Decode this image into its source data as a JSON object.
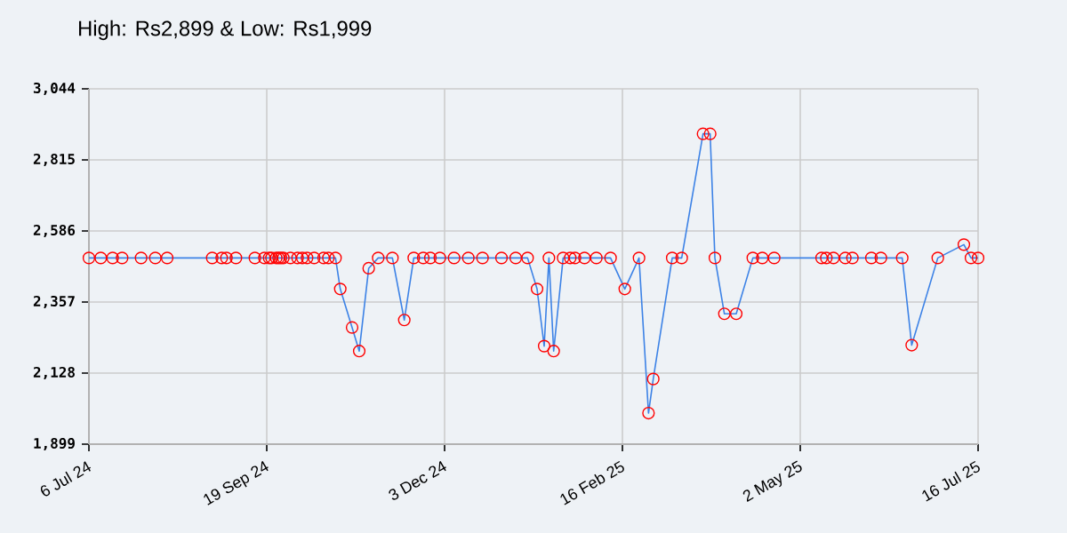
{
  "chart_data": {
    "type": "line",
    "title": "High: Rs2,899 & Low: Rs1,999",
    "x": [
      "2024-07-06",
      "2024-07-11",
      "2024-07-16",
      "2024-07-20",
      "2024-07-28",
      "2024-08-03",
      "2024-08-08",
      "2024-08-27",
      "2024-08-31",
      "2024-09-02",
      "2024-09-06",
      "2024-09-14",
      "2024-09-18",
      "2024-09-20",
      "2024-09-21",
      "2024-09-23",
      "2024-09-24",
      "2024-09-25",
      "2024-09-26",
      "2024-09-29",
      "2024-10-02",
      "2024-10-04",
      "2024-10-06",
      "2024-10-09",
      "2024-10-13",
      "2024-10-15",
      "2024-10-18",
      "2024-10-20",
      "2024-10-25",
      "2024-10-28",
      "2024-11-01",
      "2024-11-05",
      "2024-11-11",
      "2024-11-16",
      "2024-11-20",
      "2024-11-24",
      "2024-11-27",
      "2024-12-01",
      "2024-12-07",
      "2024-12-13",
      "2024-12-19",
      "2024-12-27",
      "2025-01-02",
      "2025-01-07",
      "2025-01-11",
      "2025-01-14",
      "2025-01-16",
      "2025-01-18",
      "2025-01-22",
      "2025-01-25",
      "2025-01-27",
      "2025-01-31",
      "2025-02-05",
      "2025-02-11",
      "2025-02-17",
      "2025-02-23",
      "2025-02-27",
      "2025-03-01",
      "2025-03-09",
      "2025-03-13",
      "2025-03-22",
      "2025-03-25",
      "2025-03-27",
      "2025-03-31",
      "2025-04-05",
      "2025-04-12",
      "2025-04-16",
      "2025-04-21",
      "2025-05-11",
      "2025-05-13",
      "2025-05-16",
      "2025-05-21",
      "2025-05-24",
      "2025-06-01",
      "2025-06-05",
      "2025-06-14",
      "2025-06-18",
      "2025-06-29",
      "2025-07-10",
      "2025-07-13",
      "2025-07-16"
    ],
    "series": [
      {
        "color": "#3c82e6",
        "values": [
          2499,
          2499,
          2499,
          2499,
          2499,
          2499,
          2499,
          2499,
          2499,
          2499,
          2499,
          2499,
          2499,
          2499,
          2499,
          2499,
          2499,
          2499,
          2499,
          2499,
          2499,
          2499,
          2499,
          2499,
          2499,
          2499,
          2499,
          2399,
          2275,
          2199,
          2466,
          2499,
          2499,
          2299,
          2499,
          2499,
          2499,
          2499,
          2499,
          2499,
          2499,
          2499,
          2499,
          2499,
          2399,
          2215,
          2499,
          2199,
          2499,
          2499,
          2499,
          2499,
          2499,
          2499,
          2399,
          2499,
          1999,
          2109,
          2499,
          2499,
          2899,
          2899,
          2499,
          2319,
          2319,
          2499,
          2499,
          2499,
          2499,
          2499,
          2499,
          2499,
          2499,
          2499,
          2499,
          2499,
          2218,
          2499,
          2542,
          2499,
          2499
        ]
      }
    ],
    "xlim": [
      "2024-07-06",
      "2025-07-16"
    ],
    "xticks": [
      {
        "value": "2024-07-06",
        "label": "6 Jul 24"
      },
      {
        "value": "2024-09-19",
        "label": "19 Sep 24"
      },
      {
        "value": "2024-12-03",
        "label": "3 Dec 24"
      },
      {
        "value": "2025-02-16",
        "label": "16 Feb 25"
      },
      {
        "value": "2025-05-02",
        "label": "2 May 25"
      },
      {
        "value": "2025-07-16",
        "label": "16 Jul 25"
      }
    ],
    "ylim": [
      1899,
      3044
    ],
    "yticks": [
      {
        "value": 1899,
        "label": "1,899"
      },
      {
        "value": 2128,
        "label": "2,128"
      },
      {
        "value": 2357,
        "label": "2,357"
      },
      {
        "value": 2586,
        "label": "2,586"
      },
      {
        "value": 2815,
        "label": "2,815"
      },
      {
        "value": 3044,
        "label": "3,044"
      }
    ],
    "grid": true,
    "marker": "circle",
    "line_style": "solid"
  }
}
